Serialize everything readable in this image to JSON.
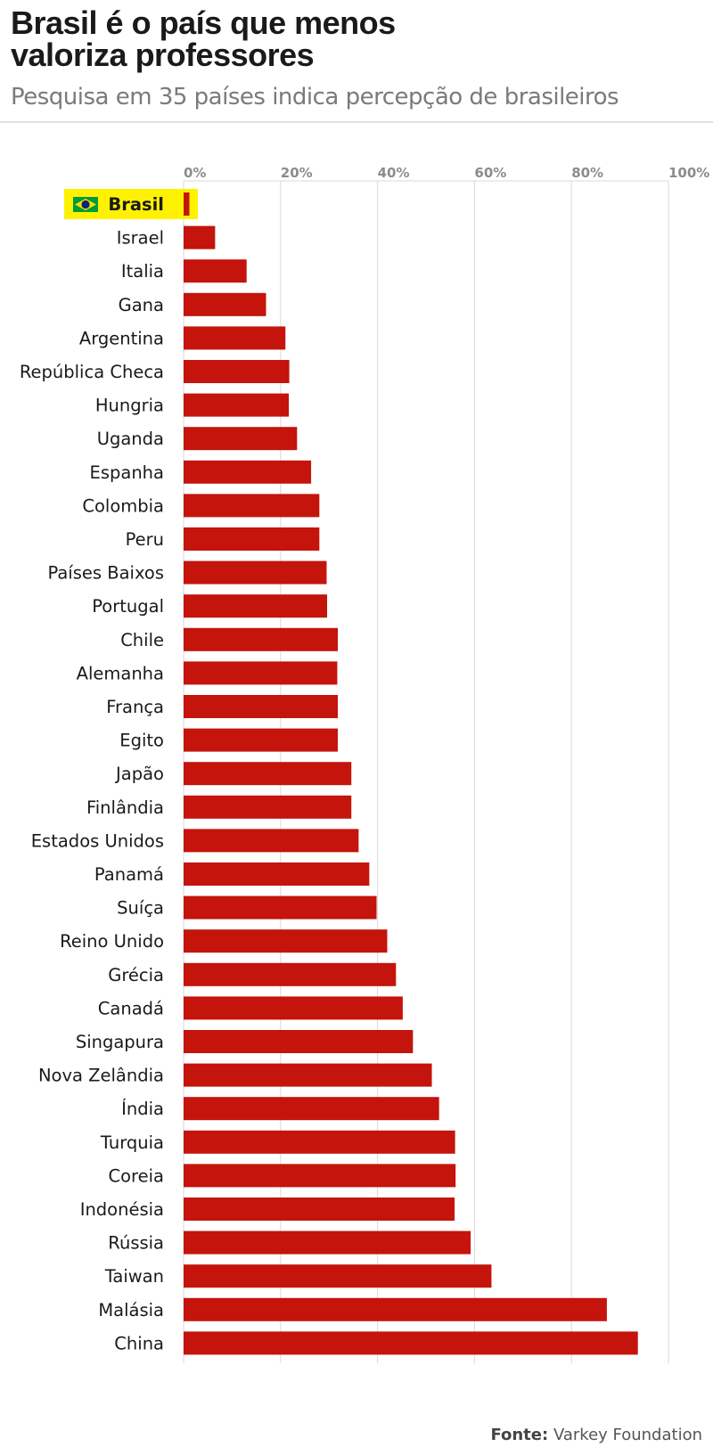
{
  "header": {
    "title_line1": "Brasil é o país que menos",
    "title_line2": "valoriza professores",
    "subtitle": "Pesquisa em 35 países indica percepção de brasileiros"
  },
  "source": {
    "label": "Fonte:",
    "value": "Varkey Foundation"
  },
  "colors": {
    "bar": "#c4140c",
    "highlight_bg": "#fff200",
    "grid": "#d9d9d9"
  },
  "chart_data": {
    "type": "bar",
    "orientation": "horizontal",
    "categories": [
      "Brasil",
      "Israel",
      "Italia",
      "Gana",
      "Argentina",
      "República Checa",
      "Hungria",
      "Uganda",
      "Espanha",
      "Colombia",
      "Peru",
      "Países Baixos",
      "Portugal",
      "Chile",
      "Alemanha",
      "França",
      "Egito",
      "Japão",
      "Finlândia",
      "Estados Unidos",
      "Panamá",
      "Suíça",
      "Reino Unido",
      "Grécia",
      "Canadá",
      "Singapura",
      "Nova Zelândia",
      "Índia",
      "Turquia",
      "Coreia",
      "Indonésia",
      "Rússia",
      "Taiwan",
      "Malásia",
      "China"
    ],
    "values": [
      1.2,
      6.5,
      13,
      17,
      21,
      21.8,
      21.7,
      23.4,
      26.3,
      28,
      28,
      29.5,
      29.6,
      31.8,
      31.7,
      31.8,
      31.8,
      34.6,
      34.6,
      36.1,
      38.3,
      39.8,
      42,
      43.8,
      45.2,
      47.3,
      51.2,
      52.7,
      56,
      56.1,
      55.9,
      59.2,
      63.5,
      87.3,
      93.7
    ],
    "highlight": "Brasil",
    "highlight_icon": "brazil-flag-icon",
    "ticks": [
      "0%",
      "20%",
      "40%",
      "60%",
      "80%",
      "100%"
    ],
    "xlim": [
      0,
      100
    ],
    "grid": true,
    "xaxis_position": "top"
  }
}
